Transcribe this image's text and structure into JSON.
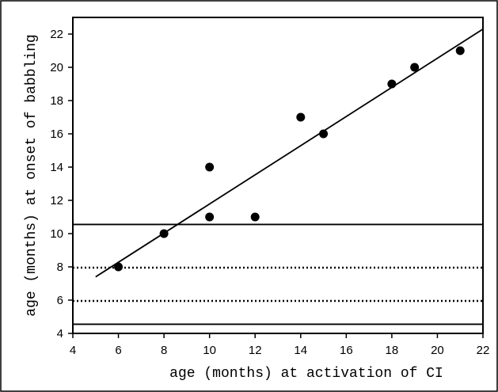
{
  "chart_data": {
    "type": "scatter",
    "xlabel": "age (months) at activation of CI",
    "ylabel": "age (months) at onset of babbling",
    "xlim": [
      4,
      22
    ],
    "ylim": [
      4,
      23
    ],
    "x_ticks": [
      4,
      6,
      8,
      10,
      12,
      14,
      16,
      18,
      20,
      22
    ],
    "y_ticks": [
      4,
      6,
      8,
      10,
      12,
      14,
      16,
      18,
      20,
      22
    ],
    "series": [
      {
        "x": [
          6,
          8,
          10,
          10,
          12,
          14,
          15,
          18,
          19,
          21
        ],
        "y": [
          8,
          10,
          11,
          14,
          11,
          17,
          16,
          19,
          20,
          21
        ]
      }
    ],
    "trend_line": {
      "x": [
        5,
        22
      ],
      "y": [
        7.4,
        22.3
      ]
    },
    "reference_lines": [
      {
        "y": 10.55,
        "style": "solid"
      },
      {
        "y": 7.95,
        "style": "dotted"
      },
      {
        "y": 5.95,
        "style": "dotted"
      },
      {
        "y": 4.55,
        "style": "solid"
      }
    ],
    "grid": false,
    "legend": "none"
  }
}
